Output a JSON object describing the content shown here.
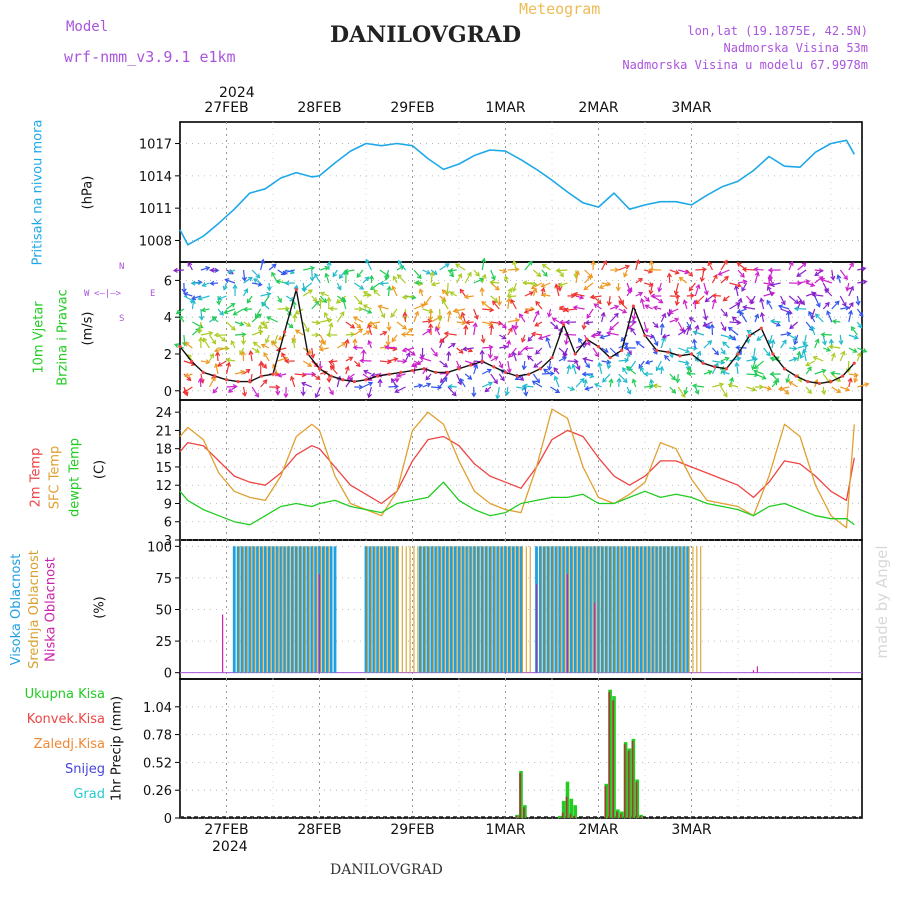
{
  "header": {
    "model_label": "Model",
    "model_name": "wrf-nmm_v3.9.1 e1km",
    "product": "Meteogram",
    "station": "DANILOVGRAD",
    "coords": "lon,lat (19.1875E, 42.5N)",
    "elevation": "Nadmorska Visina 53m",
    "model_elevation": "Nadmorska Visina u modelu 67.9978m",
    "footer_station": "DANILOVGRAD",
    "watermark": "made by Angel"
  },
  "colors": {
    "pressure": "#1fa8e8",
    "temp2m": "#ee4444",
    "sfc": "#e0a030",
    "dewpt": "#22cc22",
    "high_cloud": "#1fa0e0",
    "mid_cloud": "#d8a030",
    "low_cloud": "#cc22aa",
    "precip_total": "#22cc22",
    "precip_conv": "#ee4444",
    "precip_frozen": "#ee8833",
    "snow": "#4444dd",
    "hail": "#22cccc",
    "label_purple": "#aa55dd",
    "title_orange": "#eebb55"
  },
  "axes_top": {
    "year": "2024",
    "dates": [
      "27FEB",
      "28FEB",
      "29FEB",
      "1MAR",
      "2MAR",
      "3MAR"
    ]
  },
  "axes_bottom": {
    "dates": [
      "27FEB",
      "28FEB",
      "29FEB",
      "1MAR",
      "2MAR",
      "3MAR"
    ],
    "year": "2024"
  },
  "panel_labels": {
    "pressure": {
      "name": "Pritisak na nivou mora",
      "unit": "(hPa)"
    },
    "wind": {
      "name1": "10m Vjetar",
      "name2": "Brzina i Pravac",
      "unit": "(m/s)",
      "compass_n": "N",
      "compass_s": "S",
      "compass_w": "W",
      "compass_e": "E"
    },
    "temp": {
      "t2m": "2m Temp",
      "sfc": "SFC Temp",
      "dew": "dewpt Temp",
      "unit": "(C)"
    },
    "cloud": {
      "high": "Visoka Oblacnost",
      "mid": "Srednja Oblacnost",
      "low": "Niska Oblacnost",
      "unit": "(%)"
    },
    "precip": {
      "total": "Ukupna Kisa",
      "conv": "Konvek.Kisa",
      "frozen": "Zaledj.Kisa",
      "snow": "Snijeg",
      "hail": "Grad",
      "unit": "1hr Precip (mm)"
    }
  },
  "chart_data": [
    {
      "type": "line",
      "title": "Pritisak na nivou mora",
      "ylabel": "(hPa)",
      "x_unit": "hours from 26FEB 12:00",
      "ylim": [
        1006,
        1019
      ],
      "yticks": [
        1008,
        1011,
        1014,
        1017
      ],
      "series": [
        {
          "name": "Pritisak na nivou mora",
          "x": [
            0,
            2,
            6,
            10,
            14,
            18,
            22,
            26,
            30,
            34,
            36,
            40,
            44,
            48,
            52,
            56,
            60,
            64,
            68,
            72,
            76,
            80,
            84,
            88,
            92,
            96,
            100,
            104,
            108,
            112,
            116,
            120,
            124,
            128,
            132,
            136,
            140,
            144,
            148,
            152,
            156,
            160,
            164,
            168,
            172,
            174
          ],
          "y": [
            1009.0,
            1007.6,
            1008.4,
            1009.6,
            1010.9,
            1012.4,
            1012.8,
            1013.8,
            1014.3,
            1013.9,
            1014.0,
            1015.2,
            1016.3,
            1017.0,
            1016.8,
            1017.0,
            1016.8,
            1015.6,
            1014.6,
            1015.1,
            1015.9,
            1016.4,
            1016.3,
            1015.5,
            1014.6,
            1013.6,
            1012.5,
            1011.5,
            1011.1,
            1012.4,
            1010.9,
            1011.3,
            1011.6,
            1011.6,
            1011.3,
            1012.2,
            1013.0,
            1013.5,
            1014.5,
            1015.8,
            1014.9,
            1014.8,
            1016.2,
            1017.0,
            1017.3,
            1016.0
          ]
        }
      ]
    },
    {
      "type": "line",
      "title": "10m Vjetar Brzina i Pravac",
      "ylabel": "(m/s)",
      "x_unit": "hours from 26FEB 12:00",
      "ylim": [
        -0.5,
        7
      ],
      "yticks": [
        0,
        2,
        4,
        6
      ],
      "series": [
        {
          "name": "10m Vjetar",
          "x": [
            0,
            3,
            6,
            9,
            12,
            15,
            18,
            21,
            24,
            27,
            30,
            33,
            36,
            39,
            42,
            45,
            48,
            51,
            54,
            57,
            60,
            63,
            66,
            69,
            72,
            75,
            78,
            81,
            84,
            87,
            90,
            93,
            96,
            99,
            102,
            105,
            108,
            111,
            114,
            117,
            120,
            123,
            126,
            129,
            132,
            135,
            138,
            141,
            144,
            147,
            150,
            153,
            156,
            159,
            162,
            165,
            168,
            171,
            174
          ],
          "y": [
            2.4,
            1.6,
            1.0,
            0.8,
            0.6,
            0.5,
            0.5,
            0.8,
            0.9,
            3.2,
            5.5,
            2.0,
            1.2,
            0.8,
            0.6,
            0.5,
            0.6,
            0.8,
            0.9,
            1.0,
            1.1,
            1.2,
            1.0,
            1.0,
            1.2,
            1.4,
            1.6,
            1.3,
            1.0,
            0.8,
            0.9,
            1.2,
            1.8,
            3.6,
            2.0,
            2.8,
            2.4,
            1.8,
            2.2,
            4.6,
            3.0,
            2.2,
            2.1,
            1.9,
            2.0,
            1.5,
            1.3,
            1.2,
            2.0,
            3.0,
            3.4,
            2.0,
            1.2,
            0.8,
            0.5,
            0.4,
            0.5,
            0.8,
            1.5
          ]
        }
      ]
    },
    {
      "type": "line",
      "title": "2m Temp / SFC Temp / dewpt Temp",
      "ylabel": "(C)",
      "x_unit": "hours from 26FEB 12:00",
      "ylim": [
        3,
        26
      ],
      "yticks": [
        3,
        6,
        9,
        12,
        15,
        18,
        21,
        24
      ],
      "series": [
        {
          "name": "2m Temp",
          "x": [
            0,
            2,
            6,
            10,
            14,
            18,
            22,
            26,
            30,
            34,
            36,
            40,
            44,
            48,
            52,
            56,
            60,
            64,
            68,
            72,
            76,
            80,
            84,
            88,
            92,
            96,
            100,
            104,
            108,
            112,
            116,
            120,
            124,
            128,
            132,
            136,
            140,
            144,
            148,
            152,
            156,
            160,
            164,
            168,
            172,
            174
          ],
          "y": [
            17.5,
            19.0,
            18.5,
            16.0,
            13.5,
            12.5,
            12.0,
            14.0,
            17.0,
            18.5,
            18.0,
            15.0,
            12.0,
            10.5,
            9.0,
            11.0,
            16.0,
            19.5,
            20.0,
            18.5,
            15.5,
            13.5,
            12.5,
            11.5,
            15.0,
            19.5,
            21.0,
            20.0,
            16.5,
            13.5,
            12.0,
            13.5,
            16.0,
            16.0,
            15.0,
            14.0,
            13.0,
            12.0,
            10.0,
            12.5,
            16.0,
            15.5,
            13.5,
            11.0,
            9.5,
            16.5
          ]
        },
        {
          "name": "SFC Temp",
          "x": [
            0,
            2,
            6,
            10,
            14,
            18,
            22,
            26,
            30,
            34,
            36,
            40,
            44,
            48,
            52,
            56,
            60,
            64,
            68,
            72,
            76,
            80,
            84,
            88,
            92,
            96,
            100,
            104,
            108,
            112,
            116,
            120,
            124,
            128,
            132,
            136,
            140,
            144,
            148,
            152,
            156,
            160,
            164,
            168,
            172,
            174
          ],
          "y": [
            20.0,
            21.5,
            19.5,
            14.0,
            11.0,
            10.0,
            9.5,
            13.5,
            20.0,
            22.0,
            21.0,
            13.5,
            9.0,
            8.0,
            7.0,
            11.0,
            21.0,
            24.0,
            22.0,
            16.0,
            11.0,
            9.0,
            8.0,
            7.5,
            15.0,
            24.5,
            23.0,
            15.0,
            10.0,
            9.0,
            10.5,
            12.5,
            19.0,
            18.0,
            13.0,
            9.5,
            9.0,
            8.5,
            7.0,
            13.5,
            22.0,
            20.0,
            12.0,
            7.0,
            5.0,
            22.0
          ]
        },
        {
          "name": "dewpt Temp",
          "x": [
            0,
            2,
            6,
            10,
            14,
            18,
            22,
            26,
            30,
            34,
            36,
            40,
            44,
            48,
            52,
            56,
            60,
            64,
            68,
            72,
            76,
            80,
            84,
            88,
            92,
            96,
            100,
            104,
            108,
            112,
            116,
            120,
            124,
            128,
            132,
            136,
            140,
            144,
            148,
            152,
            156,
            160,
            164,
            168,
            172,
            174
          ],
          "y": [
            11.0,
            9.5,
            8.0,
            7.0,
            6.0,
            5.5,
            7.0,
            8.5,
            9.0,
            8.5,
            9.0,
            9.5,
            8.5,
            8.0,
            7.5,
            9.0,
            9.5,
            10.0,
            12.5,
            9.5,
            8.0,
            7.0,
            7.5,
            9.0,
            9.5,
            10.0,
            10.0,
            10.5,
            9.0,
            9.0,
            10.0,
            11.0,
            10.0,
            10.5,
            10.0,
            9.0,
            8.5,
            8.0,
            7.0,
            8.5,
            9.0,
            8.0,
            7.0,
            6.5,
            6.5,
            5.5
          ]
        }
      ]
    },
    {
      "type": "bar",
      "title": "Visoka / Srednja / Niska Oblacnost",
      "ylabel": "(%)",
      "x_unit": "hours from 26FEB 12:00",
      "ylim": [
        -5,
        105
      ],
      "yticks": [
        0,
        25,
        50,
        75,
        100
      ],
      "series": [
        {
          "name": "Visoka Oblacnost",
          "ranges": [
            [
              14,
              40
            ],
            [
              48,
              56
            ],
            [
              62,
              88
            ],
            [
              92,
              131
            ]
          ],
          "value": 100
        },
        {
          "name": "Srednja Oblacnost",
          "ranges": [
            [
              15,
              38
            ],
            [
              48,
              55
            ],
            [
              56,
              90
            ],
            [
              93,
              134
            ]
          ],
          "value": 100
        },
        {
          "name": "Niska Oblacnost",
          "points": [
            [
              11,
              46
            ],
            [
              36,
              78
            ],
            [
              92,
              70
            ],
            [
              100,
              78
            ],
            [
              107,
              55
            ],
            [
              148,
              2
            ],
            [
              149,
              5
            ]
          ]
        }
      ]
    },
    {
      "type": "bar",
      "title": "1hr Precip",
      "ylabel": "1hr Precip (mm)",
      "x_unit": "hours from 26FEB 12:00",
      "ylim": [
        0,
        1.3
      ],
      "yticks": [
        0,
        0.26,
        0.52,
        0.78,
        1.04
      ],
      "series": [
        {
          "name": "Ukupna Kisa",
          "x": [
            87,
            88,
            89,
            98,
            99,
            100,
            101,
            102,
            110,
            111,
            112,
            113,
            114,
            115,
            116,
            117,
            118,
            119
          ],
          "y": [
            0.03,
            0.44,
            0.12,
            0.02,
            0.16,
            0.34,
            0.18,
            0.12,
            0.32,
            1.2,
            1.14,
            0.08,
            0.06,
            0.71,
            0.65,
            0.74,
            0.36,
            0.03
          ]
        },
        {
          "name": "Konvek.Kisa",
          "x": [
            87,
            88,
            89,
            98,
            99,
            100,
            101,
            102,
            110,
            111,
            112,
            113,
            114,
            115,
            116,
            117,
            118,
            119
          ],
          "y": [
            0.02,
            0.42,
            0.1,
            0.0,
            0.05,
            0.2,
            0.04,
            0.02,
            0.3,
            1.18,
            1.1,
            0.06,
            0.04,
            0.69,
            0.63,
            0.72,
            0.34,
            0.02
          ]
        }
      ]
    }
  ]
}
